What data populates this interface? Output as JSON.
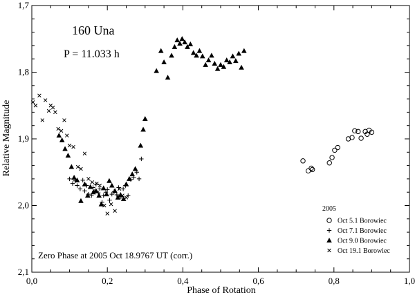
{
  "chart_data": {
    "type": "scatter",
    "title": "160 Una",
    "subtitle": "P = 11.033 h",
    "xlabel": "Phase of Rotation",
    "ylabel": "Relative Magnitude",
    "xlim": [
      0.0,
      1.0
    ],
    "ylim": [
      1.7,
      2.1
    ],
    "y_inverted": true,
    "x_ticks": [
      "0,0",
      "0,2",
      "0,4",
      "0,6",
      "0,8",
      "1,0"
    ],
    "x_tick_values": [
      0.0,
      0.2,
      0.4,
      0.6,
      0.8,
      1.0
    ],
    "y_ticks": [
      "1,7",
      "1,8",
      "1,9",
      "2,0",
      "2,1"
    ],
    "y_tick_values": [
      1.7,
      1.8,
      1.9,
      2.0,
      2.1
    ],
    "annotation": "Zero Phase at 2005 Oct 18.9767 UT (corr.)",
    "legend_title": "2005",
    "legend_position": "bottom-right",
    "series": [
      {
        "name": "Oct 5.1 Borowiec",
        "marker": "open-circle",
        "points": [
          [
            0.718,
            1.933
          ],
          [
            0.732,
            1.948
          ],
          [
            0.74,
            1.944
          ],
          [
            0.743,
            1.946
          ],
          [
            0.788,
            1.936
          ],
          [
            0.795,
            1.928
          ],
          [
            0.802,
            1.917
          ],
          [
            0.81,
            1.913
          ],
          [
            0.838,
            1.9
          ],
          [
            0.848,
            1.898
          ],
          [
            0.855,
            1.888
          ],
          [
            0.864,
            1.889
          ],
          [
            0.872,
            1.899
          ],
          [
            0.883,
            1.889
          ],
          [
            0.888,
            1.893
          ],
          [
            0.893,
            1.887
          ],
          [
            0.9,
            1.89
          ]
        ]
      },
      {
        "name": "Oct 7.1 Borowiec",
        "marker": "plus",
        "points": [
          [
            0.1,
            1.96
          ],
          [
            0.108,
            1.967
          ],
          [
            0.115,
            1.963
          ],
          [
            0.12,
            1.97
          ],
          [
            0.128,
            1.975
          ],
          [
            0.135,
            1.962
          ],
          [
            0.14,
            1.978
          ],
          [
            0.145,
            1.97
          ],
          [
            0.15,
            1.983
          ],
          [
            0.158,
            1.985
          ],
          [
            0.162,
            1.973
          ],
          [
            0.165,
            1.979
          ],
          [
            0.17,
            1.968
          ],
          [
            0.176,
            1.981
          ],
          [
            0.18,
            1.975
          ],
          [
            0.186,
            1.995
          ],
          [
            0.19,
            1.985
          ],
          [
            0.196,
            1.98
          ],
          [
            0.2,
            1.976
          ],
          [
            0.206,
            1.992
          ],
          [
            0.212,
            1.983
          ],
          [
            0.218,
            1.979
          ],
          [
            0.225,
            1.984
          ],
          [
            0.23,
            1.973
          ],
          [
            0.236,
            1.987
          ],
          [
            0.242,
            1.975
          ],
          [
            0.248,
            1.97
          ],
          [
            0.255,
            1.985
          ],
          [
            0.262,
            1.961
          ],
          [
            0.27,
            1.958
          ],
          [
            0.278,
            1.95
          ],
          [
            0.284,
            1.96
          ],
          [
            0.29,
            1.93
          ]
        ]
      },
      {
        "name": "Oct 9.0 Borowiec",
        "marker": "filled-triangle",
        "points": [
          [
            0.072,
            1.895
          ],
          [
            0.08,
            1.902
          ],
          [
            0.088,
            1.915
          ],
          [
            0.096,
            1.925
          ],
          [
            0.105,
            1.942
          ],
          [
            0.112,
            1.958
          ],
          [
            0.12,
            1.962
          ],
          [
            0.13,
            1.993
          ],
          [
            0.14,
            1.968
          ],
          [
            0.148,
            1.985
          ],
          [
            0.155,
            1.972
          ],
          [
            0.163,
            1.98
          ],
          [
            0.17,
            1.978
          ],
          [
            0.178,
            1.985
          ],
          [
            0.184,
            1.998
          ],
          [
            0.19,
            1.974
          ],
          [
            0.198,
            1.983
          ],
          [
            0.205,
            1.963
          ],
          [
            0.212,
            1.97
          ],
          [
            0.22,
            1.978
          ],
          [
            0.228,
            1.988
          ],
          [
            0.235,
            1.984
          ],
          [
            0.243,
            1.99
          ],
          [
            0.25,
            1.968
          ],
          [
            0.258,
            1.96
          ],
          [
            0.266,
            1.953
          ],
          [
            0.274,
            1.945
          ],
          [
            0.288,
            1.91
          ],
          [
            0.295,
            1.886
          ],
          [
            0.3,
            1.87
          ],
          [
            0.33,
            1.798
          ],
          [
            0.342,
            1.768
          ],
          [
            0.35,
            1.785
          ],
          [
            0.36,
            1.808
          ],
          [
            0.37,
            1.775
          ],
          [
            0.378,
            1.762
          ],
          [
            0.385,
            1.752
          ],
          [
            0.392,
            1.757
          ],
          [
            0.398,
            1.75
          ],
          [
            0.405,
            1.755
          ],
          [
            0.412,
            1.762
          ],
          [
            0.42,
            1.758
          ],
          [
            0.428,
            1.771
          ],
          [
            0.436,
            1.775
          ],
          [
            0.444,
            1.768
          ],
          [
            0.452,
            1.776
          ],
          [
            0.46,
            1.789
          ],
          [
            0.468,
            1.782
          ],
          [
            0.476,
            1.775
          ],
          [
            0.484,
            1.787
          ],
          [
            0.492,
            1.795
          ],
          [
            0.5,
            1.789
          ],
          [
            0.508,
            1.792
          ],
          [
            0.516,
            1.782
          ],
          [
            0.524,
            1.785
          ],
          [
            0.532,
            1.776
          ],
          [
            0.54,
            1.783
          ],
          [
            0.548,
            1.772
          ],
          [
            0.555,
            1.793
          ],
          [
            0.562,
            1.768
          ]
        ]
      },
      {
        "name": "Oct 19.1 Borowiec",
        "marker": "cross",
        "points": [
          [
            0.003,
            1.845
          ],
          [
            0.01,
            1.85
          ],
          [
            0.02,
            1.835
          ],
          [
            0.028,
            1.872
          ],
          [
            0.036,
            1.842
          ],
          [
            0.045,
            1.858
          ],
          [
            0.05,
            1.85
          ],
          [
            0.056,
            1.853
          ],
          [
            0.062,
            1.86
          ],
          [
            0.07,
            1.885
          ],
          [
            0.078,
            1.888
          ],
          [
            0.086,
            1.872
          ],
          [
            0.093,
            1.895
          ],
          [
            0.1,
            1.91
          ],
          [
            0.11,
            1.912
          ],
          [
            0.122,
            1.942
          ],
          [
            0.13,
            1.945
          ],
          [
            0.14,
            1.922
          ],
          [
            0.15,
            1.96
          ],
          [
            0.16,
            1.965
          ],
          [
            0.172,
            1.967
          ],
          [
            0.18,
            1.97
          ],
          [
            0.192,
            2.0
          ],
          [
            0.2,
            2.012
          ],
          [
            0.21,
            1.998
          ],
          [
            0.22,
            2.008
          ],
          [
            0.232,
            1.975
          ],
          [
            0.24,
            1.985
          ],
          [
            0.25,
            1.988
          ]
        ]
      }
    ]
  }
}
